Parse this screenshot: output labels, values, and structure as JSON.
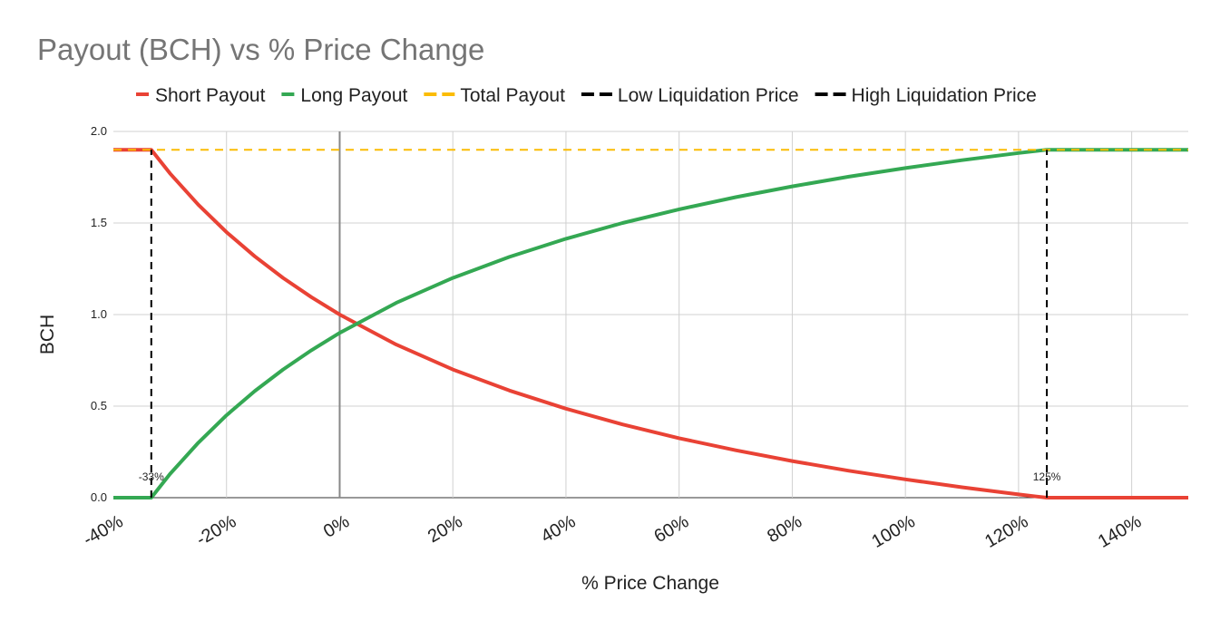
{
  "chart_data": {
    "type": "line",
    "title": "Payout (BCH) vs % Price Change",
    "xlabel": "% Price Change",
    "ylabel": "BCH",
    "xlim": [
      -40,
      150
    ],
    "ylim": [
      0,
      2.0
    ],
    "x_ticks": [
      "-40%",
      "-20%",
      "0%",
      "20%",
      "40%",
      "60%",
      "80%",
      "100%",
      "120%",
      "140%"
    ],
    "x_tick_values": [
      -40,
      -20,
      0,
      20,
      40,
      60,
      80,
      100,
      120,
      140
    ],
    "y_ticks": [
      "0.0",
      "0.5",
      "1.0",
      "1.5",
      "2.0"
    ],
    "y_tick_values": [
      0,
      0.5,
      1.0,
      1.5,
      2.0
    ],
    "grid": true,
    "legend_position": "top",
    "x": [
      -40,
      -33.3,
      -30,
      -25,
      -20,
      -15,
      -10,
      -5,
      0,
      10,
      20,
      30,
      40,
      50,
      60,
      70,
      80,
      90,
      100,
      110,
      120,
      125,
      130,
      140,
      150
    ],
    "series": [
      {
        "name": "Short Payout",
        "color": "#e94235",
        "style": "solid",
        "values": [
          1.9,
          1.9,
          1.771,
          1.6,
          1.45,
          1.318,
          1.2,
          1.095,
          1.0,
          0.836,
          0.7,
          0.585,
          0.486,
          0.4,
          0.325,
          0.259,
          0.2,
          0.147,
          0.1,
          0.057,
          0.018,
          0,
          0,
          0,
          0
        ]
      },
      {
        "name": "Long Payout",
        "color": "#34a853",
        "style": "solid",
        "values": [
          0,
          0,
          0.129,
          0.3,
          0.45,
          0.582,
          0.7,
          0.805,
          0.9,
          1.064,
          1.2,
          1.315,
          1.414,
          1.5,
          1.575,
          1.641,
          1.7,
          1.753,
          1.8,
          1.843,
          1.882,
          1.9,
          1.9,
          1.9,
          1.9
        ]
      },
      {
        "name": "Total Payout",
        "color": "#fbbc04",
        "style": "dashed",
        "values": [
          1.9,
          1.9,
          1.9,
          1.9,
          1.9,
          1.9,
          1.9,
          1.9,
          1.9,
          1.9,
          1.9,
          1.9,
          1.9,
          1.9,
          1.9,
          1.9,
          1.9,
          1.9,
          1.9,
          1.9,
          1.9,
          1.9,
          1.9,
          1.9,
          1.9
        ]
      }
    ],
    "vertical_markers": [
      {
        "name": "Low Liquidation Price",
        "color": "#000000",
        "style": "dashed",
        "x": -33.3,
        "y_range": [
          0,
          1.9
        ],
        "label": "-33%"
      },
      {
        "name": "High Liquidation Price",
        "color": "#000000",
        "style": "dashed",
        "x": 125,
        "y_range": [
          0,
          1.9
        ],
        "label": "125%"
      }
    ],
    "legend": [
      "Short Payout",
      "Long Payout",
      "Total Payout",
      "Low Liquidation Price",
      "High Liquidation Price"
    ]
  }
}
